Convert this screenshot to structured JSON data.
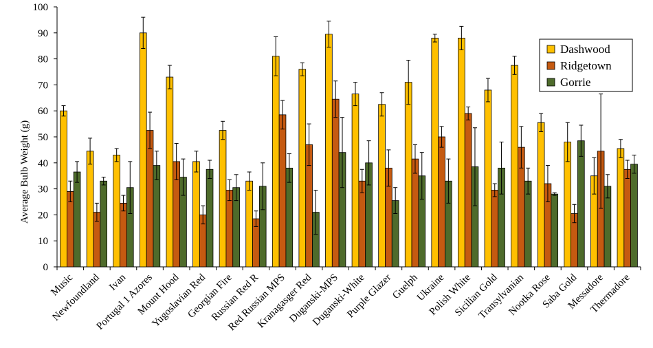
{
  "chart_data": {
    "type": "bar",
    "title": "",
    "xlabel": "",
    "ylabel": "Average Bulb Weight (g)",
    "ylim": [
      0,
      100
    ],
    "yticks": [
      0,
      10,
      20,
      30,
      40,
      50,
      60,
      70,
      80,
      90,
      100
    ],
    "grid": false,
    "legend_position": "top-right",
    "categories": [
      "Music",
      "Newfoundland",
      "Ivan",
      "Portugal 1 Azores",
      "Mount Hood",
      "Yugoslavian Red",
      "Georgian Fire",
      "Russian Red R",
      "Red Russian MPS",
      "Kranagasger Red",
      "Duganski-MPS",
      "Duganski-White",
      "Purple Glazer",
      "Guelph",
      "Ukraine",
      "Polish White",
      "Sicilian Gold",
      "Transylvanian",
      "Nootka Rose",
      "Saba Gold",
      "Messadore",
      "Thermadore"
    ],
    "series": [
      {
        "name": "Dashwood",
        "color": "#FFC000",
        "values": [
          60,
          44.5,
          43,
          90,
          73,
          40.5,
          52.5,
          33,
          81,
          76,
          89.5,
          66.5,
          62.5,
          71,
          88,
          88,
          68,
          77.5,
          55.5,
          48,
          35,
          45.5
        ],
        "errors": [
          2,
          5,
          2.5,
          6,
          4.5,
          4,
          3.5,
          3.5,
          7.5,
          2.5,
          5,
          4.5,
          4.5,
          8.5,
          1.5,
          4.5,
          4.5,
          3.5,
          3.5,
          7.5,
          7,
          3.5
        ]
      },
      {
        "name": "Ridgetown",
        "color": "#C55A11",
        "values": [
          29,
          21,
          24.5,
          52.5,
          40.5,
          20,
          29.5,
          18.5,
          58.5,
          47,
          64.5,
          33,
          38,
          41.5,
          50,
          59,
          29.5,
          46,
          32,
          20.5,
          44.5,
          37.5
        ],
        "errors": [
          4,
          3.5,
          3,
          7,
          7,
          3.5,
          4,
          3,
          5.5,
          8,
          7,
          4.5,
          7,
          5.5,
          4,
          2.5,
          2.5,
          8,
          7,
          3.5,
          22,
          3.5
        ]
      },
      {
        "name": "Gorrie",
        "color": "#4E6B2B",
        "values": [
          36.5,
          33,
          30.5,
          39,
          34.5,
          37.5,
          30.5,
          31,
          38,
          21,
          44,
          40,
          25.5,
          35,
          33,
          38.5,
          38,
          33,
          28,
          48.5,
          31,
          39.5
        ],
        "errors": [
          4,
          1.5,
          10,
          5.5,
          7,
          3.5,
          5,
          9,
          5.5,
          8.5,
          13.5,
          8.5,
          5,
          9,
          8.5,
          15,
          10,
          5,
          0.5,
          6,
          4.5,
          3.5
        ]
      }
    ]
  }
}
